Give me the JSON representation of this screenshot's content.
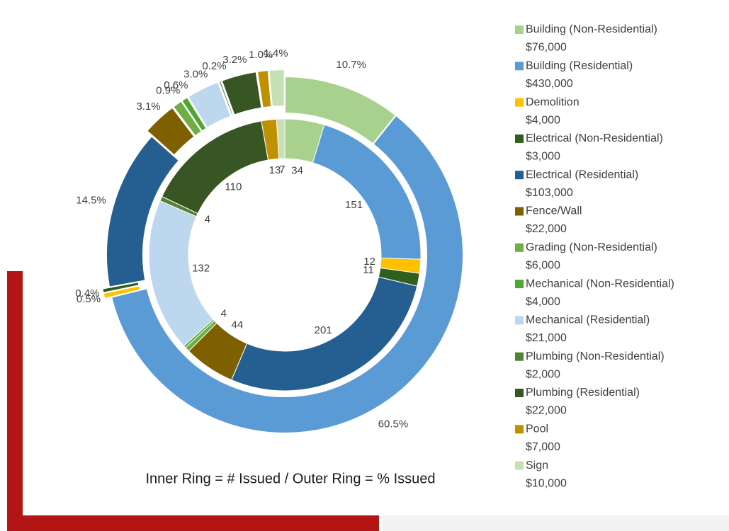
{
  "chart_data": {
    "type": "donut",
    "caption": "Inner Ring = # Issued  /  Outer Ring = % Issued",
    "categories": [
      "Building (Non-Residential)",
      "Building (Residential)",
      "Demolition",
      "Electrical (Non-Residential)",
      "Electrical (Residential)",
      "Fence/Wall",
      "Grading (Non-Residential)",
      "Mechanical (Non-Residential)",
      "Mechanical (Residential)",
      "Plumbing (Non-Residential)",
      "Plumbing (Residential)",
      "Pool",
      "Sign"
    ],
    "colors": [
      "#a9d18e",
      "#5b9bd5",
      "#ffc000",
      "#2f5f1e",
      "#255e91",
      "#7f6000",
      "#70ad47",
      "#4ea72e",
      "#bdd7ee",
      "#548235",
      "#375623",
      "#bf9000",
      "#c5e0b4"
    ],
    "legend_amounts": [
      "$76,000",
      "$430,000",
      "$4,000",
      "$3,000",
      "$103,000",
      "$22,000",
      "$6,000",
      "$4,000",
      "$21,000",
      "$2,000",
      "$22,000",
      "$7,000",
      "$10,000"
    ],
    "series": [
      {
        "name": "# Issued",
        "ring": "inner",
        "values": [
          34,
          151,
          12,
          11,
          201,
          44,
          4,
          2,
          132,
          4,
          110,
          13,
          7
        ],
        "value_labels": [
          "34",
          "151",
          "12",
          "11",
          "201",
          "44",
          "4",
          null,
          "132",
          "4",
          "110",
          "13",
          "7"
        ]
      },
      {
        "name": "% Issued",
        "ring": "outer",
        "values": [
          10.7,
          60.5,
          0.5,
          0.4,
          14.5,
          3.1,
          0.9,
          0.6,
          3.0,
          0.2,
          3.2,
          1.0,
          1.4
        ],
        "value_labels": [
          "10.7%",
          "60.5%",
          "0.5%",
          "0.4%",
          "14.5%",
          "3.1%",
          "0.9%",
          "0.6%",
          "3.0%",
          "0.2%",
          "3.2%",
          "1.0%",
          "1.4%"
        ]
      }
    ]
  }
}
